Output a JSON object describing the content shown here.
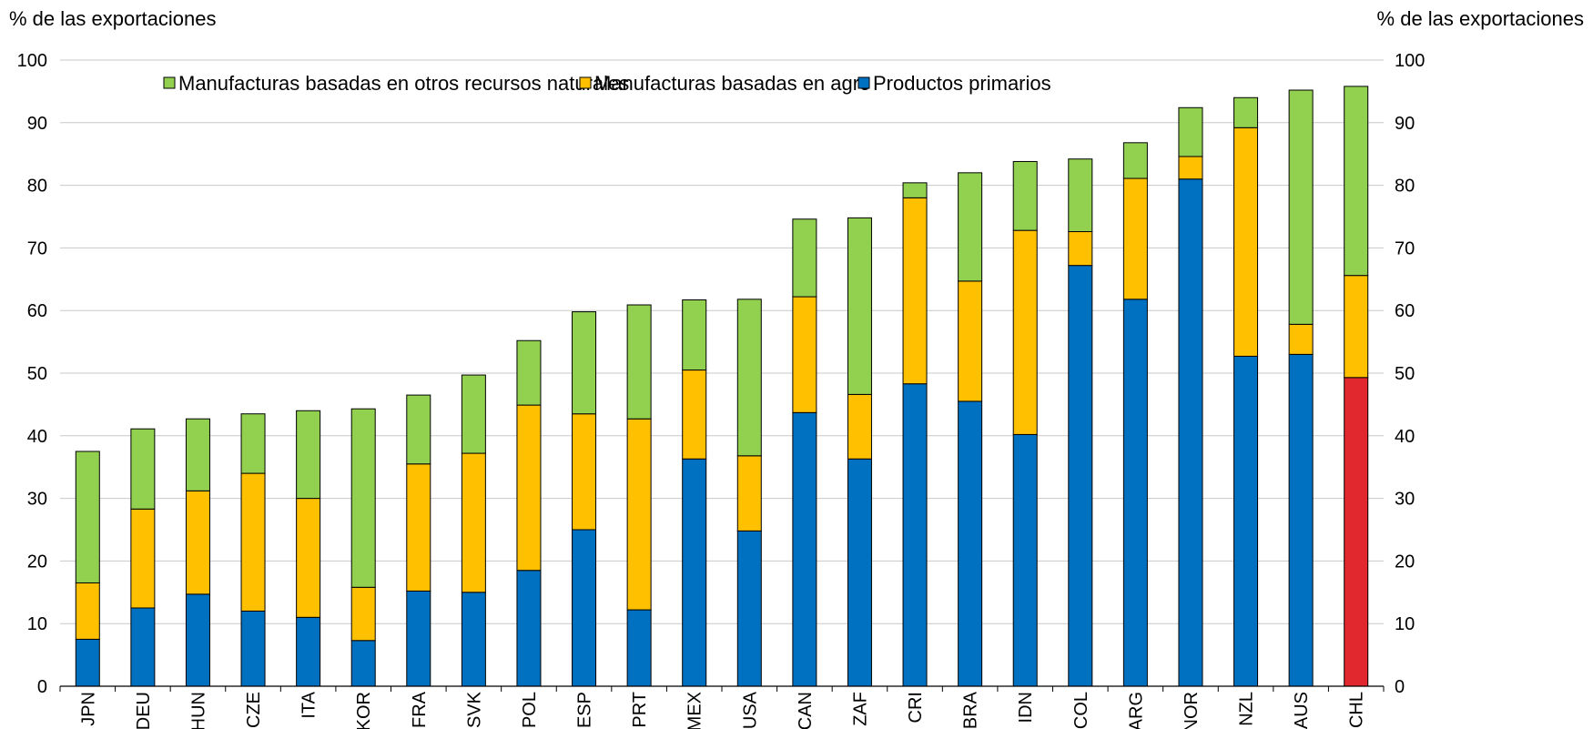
{
  "chart_data": {
    "type": "bar",
    "stacked": true,
    "y_unit_label_left": "% de las exportaciones",
    "y_unit_label_right": "% de las exportaciones",
    "ylim": [
      0,
      100
    ],
    "yticks": [
      0,
      10,
      20,
      30,
      40,
      50,
      60,
      70,
      80,
      90,
      100
    ],
    "grid": true,
    "legend_position": "top-left",
    "categories": [
      "JPN",
      "DEU",
      "HUN",
      "CZE",
      "ITA",
      "KOR",
      "FRA",
      "SVK",
      "POL",
      "ESP",
      "PRT",
      "MEX",
      "USA",
      "CAN",
      "ZAF",
      "CRI",
      "BRA",
      "IDN",
      "COL",
      "ARG",
      "NOR",
      "NZL",
      "AUS",
      "CHL"
    ],
    "highlight": {
      "category": "CHL",
      "series": "Productos primarios",
      "color": "#e0282e"
    },
    "series": [
      {
        "name": "Productos primarios",
        "color": "#0070c0",
        "values": [
          7.5,
          12.5,
          14.7,
          12.0,
          11.0,
          7.3,
          15.2,
          15.0,
          18.5,
          25.0,
          12.2,
          36.3,
          24.8,
          43.7,
          36.3,
          48.3,
          45.5,
          40.2,
          67.2,
          61.8,
          81.0,
          52.7,
          53.0,
          49.3
        ]
      },
      {
        "name": "Manufacturas basadas en agro",
        "color": "#ffc000",
        "values": [
          9.0,
          15.8,
          16.5,
          22.0,
          19.0,
          8.5,
          20.3,
          22.2,
          26.4,
          18.5,
          30.5,
          14.2,
          12.0,
          18.5,
          10.3,
          29.7,
          19.2,
          32.6,
          5.4,
          19.3,
          3.6,
          36.5,
          4.8,
          16.3
        ]
      },
      {
        "name": "Manufacturas basadas en otros recursos naturales",
        "color": "#92d050",
        "values": [
          21.0,
          12.8,
          11.5,
          9.5,
          14.0,
          28.5,
          11.0,
          12.5,
          10.3,
          16.3,
          18.2,
          11.2,
          25.0,
          12.4,
          28.2,
          2.4,
          17.3,
          11.0,
          11.6,
          5.7,
          7.8,
          4.8,
          37.4,
          30.2
        ]
      }
    ]
  },
  "legend": {
    "items": [
      {
        "label": "Manufacturas basadas en otros recursos naturales",
        "color": "#92d050"
      },
      {
        "label": "Manufacturas basadas en agro",
        "color": "#ffc000"
      },
      {
        "label": "Productos primarios",
        "color": "#0070c0"
      }
    ]
  }
}
